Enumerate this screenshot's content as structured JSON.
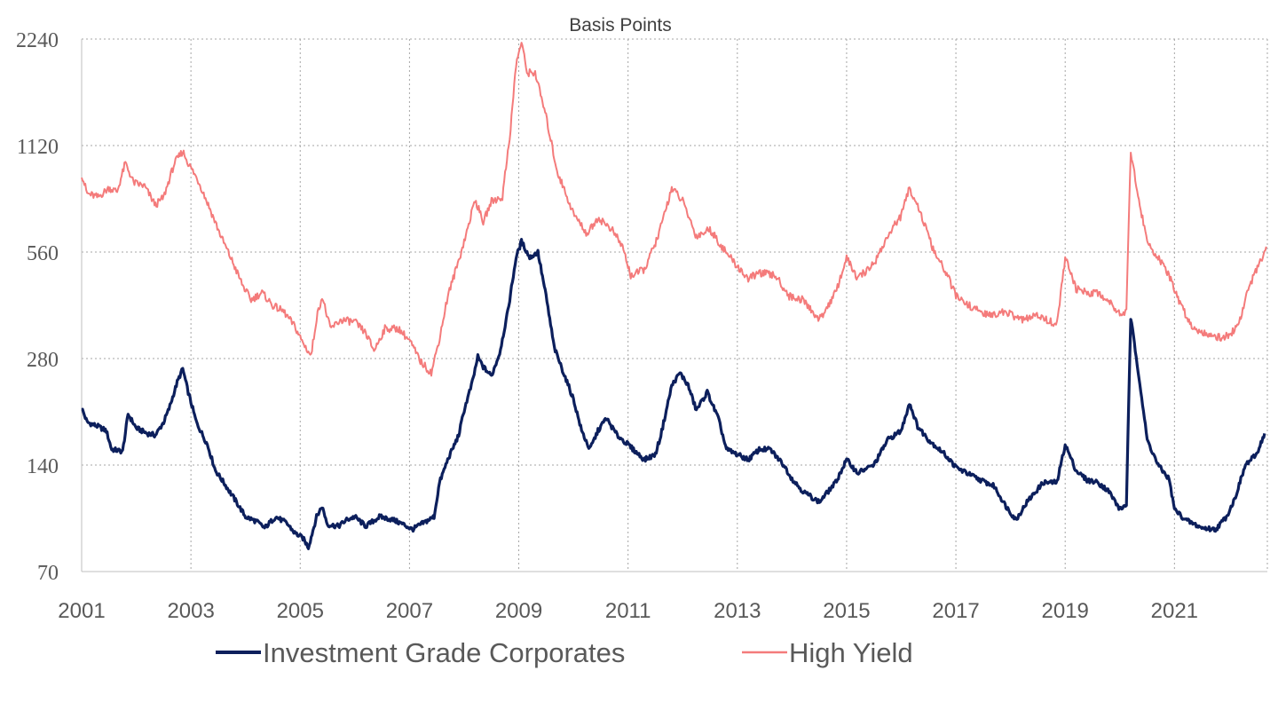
{
  "chart_data": {
    "type": "line",
    "title": "Basis Points",
    "xlabel": "",
    "ylabel": "",
    "y_scale": "log2",
    "ylim": [
      70,
      2240
    ],
    "xlim": [
      2001,
      2022.7
    ],
    "y_ticks": [
      "70",
      "140",
      "280",
      "560",
      "1120",
      "2240"
    ],
    "x_ticks": [
      "2001",
      "2003",
      "2005",
      "2007",
      "2009",
      "2011",
      "2013",
      "2015",
      "2017",
      "2019",
      "2021"
    ],
    "grid": true,
    "legend_position": "bottom",
    "series": [
      {
        "name": "Investment Grade Corporates",
        "color": "#0c1f5c",
        "points": [
          [
            2001.0,
            203
          ],
          [
            2001.1,
            185
          ],
          [
            2001.3,
            180
          ],
          [
            2001.45,
            175
          ],
          [
            2001.55,
            155
          ],
          [
            2001.75,
            153
          ],
          [
            2001.85,
            195
          ],
          [
            2002.0,
            178
          ],
          [
            2002.2,
            172
          ],
          [
            2002.35,
            170
          ],
          [
            2002.5,
            185
          ],
          [
            2002.6,
            202
          ],
          [
            2002.75,
            240
          ],
          [
            2002.85,
            262
          ],
          [
            2002.95,
            225
          ],
          [
            2003.1,
            185
          ],
          [
            2003.3,
            160
          ],
          [
            2003.45,
            135
          ],
          [
            2003.6,
            125
          ],
          [
            2003.8,
            112
          ],
          [
            2004.0,
            100
          ],
          [
            2004.2,
            97
          ],
          [
            2004.35,
            93
          ],
          [
            2004.55,
            100
          ],
          [
            2004.75,
            96
          ],
          [
            2004.9,
            90
          ],
          [
            2005.05,
            87
          ],
          [
            2005.15,
            82
          ],
          [
            2005.3,
            100
          ],
          [
            2005.4,
            107
          ],
          [
            2005.5,
            95
          ],
          [
            2005.7,
            94
          ],
          [
            2005.85,
            98
          ],
          [
            2006.0,
            100
          ],
          [
            2006.2,
            94
          ],
          [
            2006.45,
            100
          ],
          [
            2006.7,
            98
          ],
          [
            2006.9,
            95
          ],
          [
            2007.05,
            92
          ],
          [
            2007.25,
            96
          ],
          [
            2007.45,
            100
          ],
          [
            2007.55,
            125
          ],
          [
            2007.7,
            145
          ],
          [
            2007.9,
            170
          ],
          [
            2008.0,
            200
          ],
          [
            2008.15,
            240
          ],
          [
            2008.25,
            283
          ],
          [
            2008.35,
            265
          ],
          [
            2008.5,
            250
          ],
          [
            2008.65,
            290
          ],
          [
            2008.8,
            380
          ],
          [
            2008.95,
            540
          ],
          [
            2009.05,
            600
          ],
          [
            2009.2,
            540
          ],
          [
            2009.35,
            560
          ],
          [
            2009.5,
            420
          ],
          [
            2009.65,
            300
          ],
          [
            2009.8,
            260
          ],
          [
            2010.0,
            215
          ],
          [
            2010.15,
            175
          ],
          [
            2010.3,
            155
          ],
          [
            2010.45,
            175
          ],
          [
            2010.6,
            190
          ],
          [
            2010.8,
            170
          ],
          [
            2011.0,
            160
          ],
          [
            2011.15,
            152
          ],
          [
            2011.3,
            145
          ],
          [
            2011.5,
            150
          ],
          [
            2011.6,
            170
          ],
          [
            2011.8,
            235
          ],
          [
            2011.95,
            255
          ],
          [
            2012.1,
            235
          ],
          [
            2012.25,
            200
          ],
          [
            2012.45,
            225
          ],
          [
            2012.65,
            190
          ],
          [
            2012.8,
            155
          ],
          [
            2013.0,
            150
          ],
          [
            2013.2,
            145
          ],
          [
            2013.4,
            155
          ],
          [
            2013.6,
            155
          ],
          [
            2013.85,
            140
          ],
          [
            2014.0,
            128
          ],
          [
            2014.2,
            118
          ],
          [
            2014.5,
            110
          ],
          [
            2014.8,
            125
          ],
          [
            2015.0,
            145
          ],
          [
            2015.2,
            133
          ],
          [
            2015.5,
            140
          ],
          [
            2015.75,
            165
          ],
          [
            2016.0,
            175
          ],
          [
            2016.15,
            210
          ],
          [
            2016.3,
            180
          ],
          [
            2016.5,
            165
          ],
          [
            2016.8,
            150
          ],
          [
            2017.0,
            138
          ],
          [
            2017.4,
            128
          ],
          [
            2017.7,
            122
          ],
          [
            2017.9,
            108
          ],
          [
            2018.1,
            98
          ],
          [
            2018.3,
            110
          ],
          [
            2018.6,
            125
          ],
          [
            2018.85,
            125
          ],
          [
            2019.0,
            160
          ],
          [
            2019.2,
            135
          ],
          [
            2019.4,
            127
          ],
          [
            2019.6,
            125
          ],
          [
            2019.8,
            118
          ],
          [
            2020.0,
            105
          ],
          [
            2020.12,
            108
          ],
          [
            2020.2,
            365
          ],
          [
            2020.35,
            250
          ],
          [
            2020.5,
            165
          ],
          [
            2020.7,
            140
          ],
          [
            2020.9,
            128
          ],
          [
            2021.0,
            105
          ],
          [
            2021.2,
            98
          ],
          [
            2021.5,
            93
          ],
          [
            2021.75,
            92
          ],
          [
            2021.95,
            100
          ],
          [
            2022.1,
            112
          ],
          [
            2022.3,
            140
          ],
          [
            2022.5,
            150
          ],
          [
            2022.65,
            172
          ]
        ]
      },
      {
        "name": "High Yield",
        "color": "#f47b7b",
        "points": [
          [
            2001.0,
            930
          ],
          [
            2001.1,
            820
          ],
          [
            2001.3,
            800
          ],
          [
            2001.5,
            850
          ],
          [
            2001.65,
            830
          ],
          [
            2001.8,
            1000
          ],
          [
            2001.95,
            880
          ],
          [
            2002.15,
            860
          ],
          [
            2002.35,
            760
          ],
          [
            2002.5,
            800
          ],
          [
            2002.7,
            1000
          ],
          [
            2002.85,
            1080
          ],
          [
            2002.95,
            1000
          ],
          [
            2003.15,
            880
          ],
          [
            2003.35,
            740
          ],
          [
            2003.55,
            620
          ],
          [
            2003.75,
            530
          ],
          [
            2003.95,
            450
          ],
          [
            2004.1,
            410
          ],
          [
            2004.3,
            430
          ],
          [
            2004.5,
            395
          ],
          [
            2004.7,
            380
          ],
          [
            2004.9,
            345
          ],
          [
            2005.05,
            310
          ],
          [
            2005.2,
            285
          ],
          [
            2005.3,
            365
          ],
          [
            2005.4,
            420
          ],
          [
            2005.55,
            340
          ],
          [
            2005.75,
            360
          ],
          [
            2006.0,
            355
          ],
          [
            2006.2,
            330
          ],
          [
            2006.35,
            295
          ],
          [
            2006.55,
            340
          ],
          [
            2006.8,
            340
          ],
          [
            2007.0,
            315
          ],
          [
            2007.2,
            275
          ],
          [
            2007.4,
            255
          ],
          [
            2007.55,
            320
          ],
          [
            2007.7,
            420
          ],
          [
            2007.9,
            530
          ],
          [
            2008.05,
            640
          ],
          [
            2008.2,
            790
          ],
          [
            2008.35,
            680
          ],
          [
            2008.5,
            780
          ],
          [
            2008.7,
            800
          ],
          [
            2008.85,
            1250
          ],
          [
            2008.95,
            1900
          ],
          [
            2009.05,
            2200
          ],
          [
            2009.15,
            1800
          ],
          [
            2009.3,
            1800
          ],
          [
            2009.5,
            1350
          ],
          [
            2009.7,
            950
          ],
          [
            2010.0,
            720
          ],
          [
            2010.25,
            630
          ],
          [
            2010.45,
            700
          ],
          [
            2010.7,
            650
          ],
          [
            2010.9,
            580
          ],
          [
            2011.05,
            480
          ],
          [
            2011.3,
            500
          ],
          [
            2011.55,
            620
          ],
          [
            2011.8,
            850
          ],
          [
            2012.0,
            780
          ],
          [
            2012.25,
            620
          ],
          [
            2012.5,
            650
          ],
          [
            2012.75,
            570
          ],
          [
            2013.0,
            510
          ],
          [
            2013.2,
            470
          ],
          [
            2013.4,
            490
          ],
          [
            2013.7,
            480
          ],
          [
            2013.95,
            420
          ],
          [
            2014.2,
            410
          ],
          [
            2014.5,
            360
          ],
          [
            2014.8,
            430
          ],
          [
            2015.0,
            540
          ],
          [
            2015.2,
            470
          ],
          [
            2015.5,
            520
          ],
          [
            2015.8,
            640
          ],
          [
            2016.0,
            710
          ],
          [
            2016.15,
            850
          ],
          [
            2016.3,
            760
          ],
          [
            2016.6,
            560
          ],
          [
            2016.85,
            480
          ],
          [
            2017.0,
            420
          ],
          [
            2017.3,
            390
          ],
          [
            2017.6,
            370
          ],
          [
            2017.9,
            380
          ],
          [
            2018.2,
            360
          ],
          [
            2018.5,
            370
          ],
          [
            2018.85,
            350
          ],
          [
            2019.0,
            540
          ],
          [
            2019.2,
            440
          ],
          [
            2019.4,
            430
          ],
          [
            2019.6,
            430
          ],
          [
            2019.85,
            400
          ],
          [
            2020.05,
            370
          ],
          [
            2020.12,
            390
          ],
          [
            2020.2,
            1080
          ],
          [
            2020.35,
            780
          ],
          [
            2020.5,
            600
          ],
          [
            2020.7,
            540
          ],
          [
            2020.9,
            480
          ],
          [
            2021.1,
            400
          ],
          [
            2021.35,
            340
          ],
          [
            2021.6,
            330
          ],
          [
            2021.85,
            320
          ],
          [
            2022.05,
            330
          ],
          [
            2022.2,
            360
          ],
          [
            2022.35,
            440
          ],
          [
            2022.5,
            500
          ],
          [
            2022.62,
            540
          ],
          [
            2022.68,
            580
          ]
        ]
      }
    ]
  }
}
